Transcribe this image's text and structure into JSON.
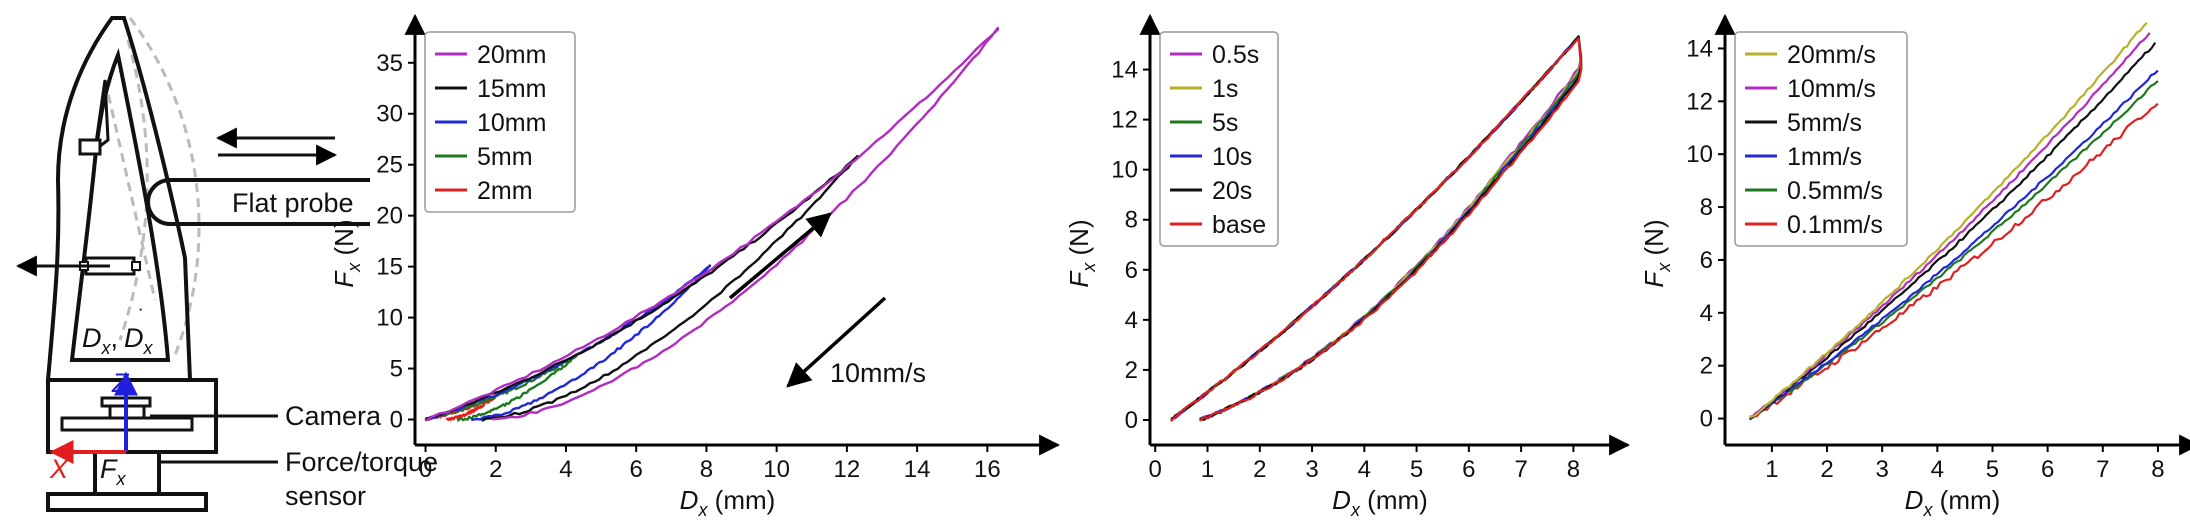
{
  "diagram": {
    "flat_probe_label": "Flat probe",
    "camera_label": "Camera",
    "sensor_label_1": "Force/torque",
    "sensor_label_2": "sensor",
    "marker_label_a": "D",
    "marker_sub_a": "x",
    "marker_sep": ",",
    "marker_label_b": "D",
    "marker_sub_b": "x",
    "axis_z": "Z",
    "axis_x": "X",
    "force_label": "F",
    "force_sub": "x",
    "colors": {
      "z_axis": "#1f1fdd",
      "x_axis": "#e11d1d"
    }
  },
  "chart_data": [
    {
      "type": "line",
      "title": "",
      "xlabel": {
        "var": "D",
        "sub": "x",
        "unit": " (mm)"
      },
      "ylabel": {
        "var": "F",
        "sub": "x",
        "unit": " (N)"
      },
      "xlim": [
        -0.3,
        17.5
      ],
      "ylim": [
        -2.5,
        39
      ],
      "xticks": [
        0,
        2,
        4,
        6,
        8,
        10,
        12,
        14,
        16
      ],
      "yticks": [
        0,
        5,
        10,
        15,
        20,
        25,
        30,
        35
      ],
      "legend_position": "top-left",
      "annotation": "10mm/s",
      "series": [
        {
          "name": "20mm",
          "color": "#b12cc0",
          "max_disp": 16.3,
          "max_force": 38.3,
          "return_offset": 1.9
        },
        {
          "name": "15mm",
          "color": "#111111",
          "max_disp": 12.3,
          "max_force": 25.8,
          "return_offset": 1.6
        },
        {
          "name": "10mm",
          "color": "#2028d8",
          "max_disp": 8.1,
          "max_force": 15.0,
          "return_offset": 1.3
        },
        {
          "name": "5mm",
          "color": "#1f7a1f",
          "max_disp": 4.3,
          "max_force": 6.3,
          "return_offset": 0.9
        },
        {
          "name": "2mm",
          "color": "#e02020",
          "max_disp": 2.0,
          "max_force": 2.3,
          "return_offset": 0.6
        }
      ]
    },
    {
      "type": "line",
      "title": "",
      "xlabel": {
        "var": "D",
        "sub": "x",
        "unit": " (mm)"
      },
      "ylabel": {
        "var": "F",
        "sub": "x",
        "unit": " (N)"
      },
      "xlim": [
        -0.1,
        8.7
      ],
      "ylim": [
        -1.0,
        15.9
      ],
      "xticks": [
        0,
        1,
        2,
        3,
        4,
        5,
        6,
        7,
        8
      ],
      "yticks": [
        0,
        2,
        4,
        6,
        8,
        10,
        12,
        14
      ],
      "legend_position": "top-left",
      "series": [
        {
          "name": "0.5s",
          "color": "#b12cc0"
        },
        {
          "name": "1s",
          "color": "#b5b22a"
        },
        {
          "name": "5s",
          "color": "#1f7a1f"
        },
        {
          "name": "10s",
          "color": "#2028d8"
        },
        {
          "name": "20s",
          "color": "#111111"
        },
        {
          "name": "base",
          "color": "#e02020"
        }
      ],
      "loop": {
        "loading_start": 0.3,
        "unloading_end": 0.85,
        "max_disp": 8.1,
        "max_force": 15.3
      }
    },
    {
      "type": "line",
      "title": "",
      "xlabel": {
        "var": "D",
        "sub": "x",
        "unit": " (mm)"
      },
      "ylabel": {
        "var": "F",
        "sub": "x",
        "unit": " (N)"
      },
      "xlim": [
        0.15,
        8.4
      ],
      "ylim": [
        -1.0,
        15.0
      ],
      "xticks": [
        1,
        2,
        3,
        4,
        5,
        6,
        7,
        8
      ],
      "yticks": [
        0,
        2,
        4,
        6,
        8,
        10,
        12,
        14
      ],
      "legend_position": "top-left",
      "series": [
        {
          "name": "20mm/s",
          "color": "#b5b22a",
          "end_x": 7.8,
          "end_y": 15.0
        },
        {
          "name": "10mm/s",
          "color": "#b12cc0",
          "end_x": 7.85,
          "end_y": 14.6
        },
        {
          "name": "5mm/s",
          "color": "#111111",
          "end_x": 7.95,
          "end_y": 14.2
        },
        {
          "name": "1mm/s",
          "color": "#2028d8",
          "end_x": 8.0,
          "end_y": 13.2
        },
        {
          "name": "0.5mm/s",
          "color": "#1f7a1f",
          "end_x": 8.0,
          "end_y": 12.8
        },
        {
          "name": "0.1mm/s",
          "color": "#e02020",
          "end_x": 8.0,
          "end_y": 12.0
        }
      ]
    }
  ]
}
